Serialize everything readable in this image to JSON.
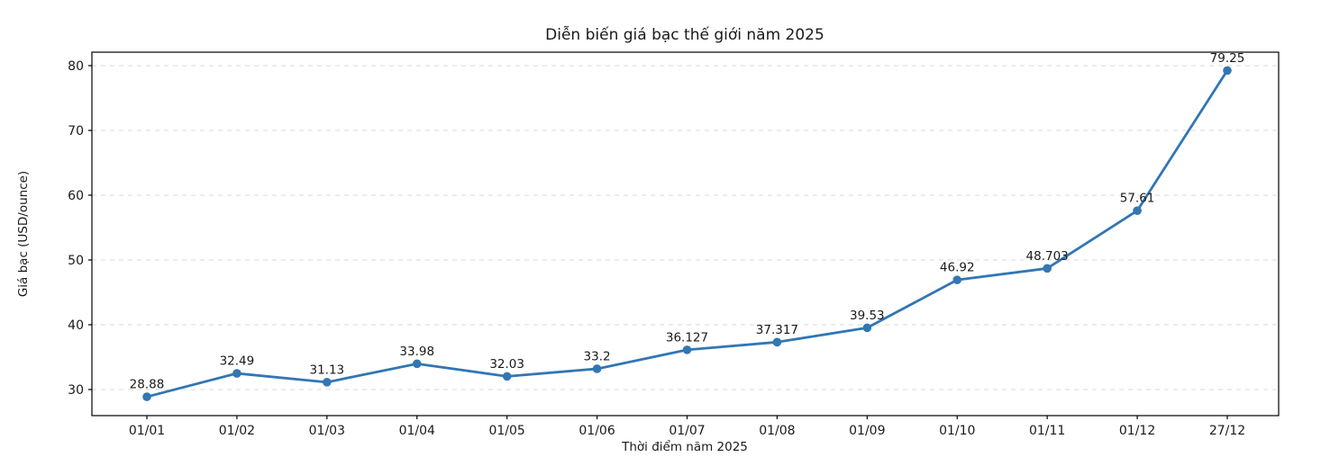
{
  "chart_data": {
    "type": "line",
    "title": "Diễn biến giá bạc thế giới năm 2025",
    "xlabel": "Thời điểm năm 2025",
    "ylabel": "Giá bạc (USD/ounce)",
    "categories": [
      "01/01",
      "01/02",
      "01/03",
      "01/04",
      "01/05",
      "01/06",
      "01/07",
      "01/08",
      "01/09",
      "01/10",
      "01/11",
      "01/12",
      "27/12"
    ],
    "values": [
      28.88,
      32.49,
      31.13,
      33.98,
      32.03,
      33.2,
      36.127,
      37.317,
      39.53,
      46.92,
      48.703,
      57.61,
      79.25
    ],
    "point_labels": [
      "28.88",
      "32.49",
      "31.13",
      "33.98",
      "32.03",
      "33.2",
      "36.127",
      "37.317",
      "39.53",
      "46.92",
      "48.703",
      "57.61",
      "79.25"
    ],
    "y_ticks": [
      30,
      40,
      50,
      60,
      70,
      80
    ],
    "ylim": [
      25.97,
      82.08
    ],
    "grid": "horizontal-dashed",
    "legend_position": "none",
    "colors": {
      "line": "#3276b4",
      "marker": "#3276b4",
      "grid": "#d9d9d9",
      "spine": "#000000",
      "text": "#1a1a1a"
    }
  }
}
